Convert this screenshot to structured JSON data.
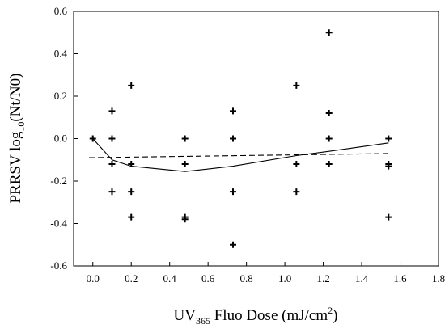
{
  "chart_data": {
    "type": "scatter",
    "xlabel": {
      "before": "UV",
      "subscript": "365",
      "after": " Fluo Dose (mJ/cm",
      "superscript": "2",
      "end": ")"
    },
    "ylabel": {
      "before": "PRRSV log",
      "subscript": "10",
      "after": "(Nt/N0)"
    },
    "xlim": [
      -0.1,
      1.8
    ],
    "ylim": [
      -0.6,
      0.6
    ],
    "x_ticks": [
      "0.0",
      "0.2",
      "0.4",
      "0.6",
      "0.8",
      "1.0",
      "1.2",
      "1.4",
      "1.6",
      "1.8"
    ],
    "y_ticks": [
      "-0.6",
      "-0.4",
      "-0.2",
      "0.0",
      "0.2",
      "0.4",
      "0.6"
    ],
    "grid": false,
    "series": [
      {
        "marker": "plus",
        "points": [
          [
            0.0,
            0.0
          ],
          [
            0.1,
            0.13
          ],
          [
            0.1,
            0.0
          ],
          [
            0.1,
            -0.12
          ],
          [
            0.1,
            -0.25
          ],
          [
            0.2,
            0.25
          ],
          [
            0.2,
            -0.12
          ],
          [
            0.2,
            -0.25
          ],
          [
            0.2,
            -0.37
          ],
          [
            0.48,
            0.0
          ],
          [
            0.48,
            -0.12
          ],
          [
            0.48,
            -0.37
          ],
          [
            0.48,
            -0.38
          ],
          [
            0.73,
            0.13
          ],
          [
            0.73,
            0.0
          ],
          [
            0.73,
            -0.25
          ],
          [
            0.73,
            -0.5
          ],
          [
            1.06,
            0.25
          ],
          [
            1.06,
            -0.12
          ],
          [
            1.06,
            -0.25
          ],
          [
            1.23,
            0.5
          ],
          [
            1.23,
            0.12
          ],
          [
            1.23,
            0.0
          ],
          [
            1.23,
            -0.12
          ],
          [
            1.54,
            0.0
          ],
          [
            1.54,
            -0.12
          ],
          [
            1.54,
            -0.13
          ],
          [
            1.54,
            -0.37
          ]
        ]
      },
      {
        "line_style": "solid",
        "points": [
          [
            0.0,
            0.0
          ],
          [
            0.1,
            -0.1
          ],
          [
            0.2,
            -0.13
          ],
          [
            0.48,
            -0.155
          ],
          [
            0.73,
            -0.13
          ],
          [
            1.06,
            -0.08
          ],
          [
            1.23,
            -0.06
          ],
          [
            1.54,
            -0.02
          ]
        ]
      },
      {
        "line_style": "dashed",
        "points": [
          [
            -0.02,
            -0.09
          ],
          [
            1.56,
            -0.07
          ]
        ]
      }
    ]
  }
}
